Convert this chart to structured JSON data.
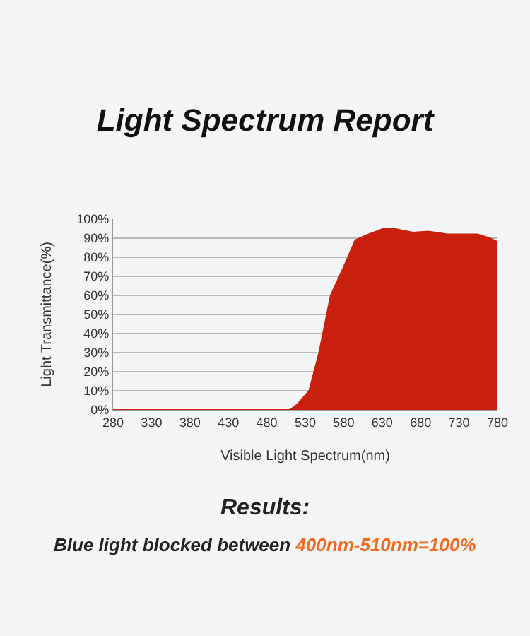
{
  "chart_data": {
    "type": "area",
    "title": "Light Spectrum Report",
    "xlabel": "Visible Light Spectrum(nm)",
    "ylabel": "Light Transmittance(%)",
    "x": [
      280,
      500,
      510,
      520,
      535,
      548,
      563,
      579,
      595,
      612,
      632,
      645,
      670,
      690,
      715,
      754,
      770,
      780
    ],
    "series": [
      {
        "color": "#c8200c",
        "values": [
          0,
          0,
          0,
          3,
          10,
          30,
          60,
          74,
          89,
          92,
          95,
          95,
          93,
          93.5,
          92,
          92,
          90,
          88
        ]
      }
    ],
    "xlim": [
      280,
      780
    ],
    "xticks": [
      280,
      330,
      380,
      430,
      480,
      530,
      580,
      630,
      680,
      730,
      780
    ],
    "ylim": [
      0,
      100
    ],
    "yticks": [
      {
        "value": 0,
        "label": "0%"
      },
      {
        "value": 10,
        "label": "10%"
      },
      {
        "value": 20,
        "label": "20%"
      },
      {
        "value": 30,
        "label": "30%"
      },
      {
        "value": 40,
        "label": "40%"
      },
      {
        "value": 50,
        "label": "50%"
      },
      {
        "value": 60,
        "label": "60%"
      },
      {
        "value": 70,
        "label": "70%"
      },
      {
        "value": 80,
        "label": "80%"
      },
      {
        "value": 90,
        "label": "90%"
      },
      {
        "value": 100,
        "label": "100%"
      }
    ],
    "grid": "y",
    "legend": false,
    "marker": "none",
    "annotations": [
      "Results:",
      "Blue light blocked between ",
      "400nm-510nm=100%"
    ]
  }
}
